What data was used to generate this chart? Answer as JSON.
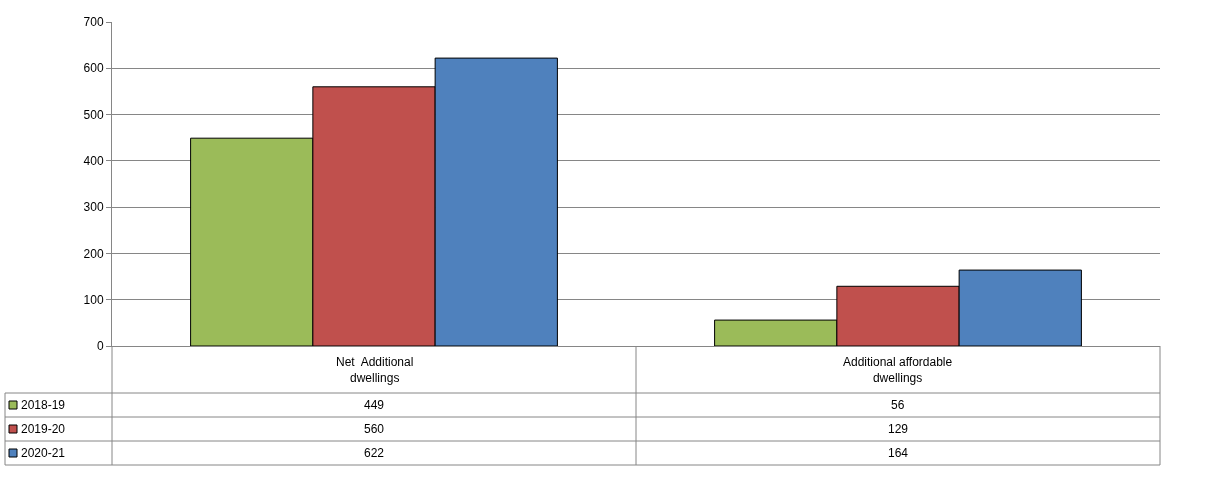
{
  "chart_data": {
    "type": "bar",
    "categories": [
      "Net  Additional\ndwellings",
      "Additional affordable\ndwellings"
    ],
    "series": [
      {
        "name": "2018-19",
        "color": "#9bbb59",
        "values": [
          449,
          56
        ]
      },
      {
        "name": "2019-20",
        "color": "#c0504d",
        "values": [
          560,
          129
        ]
      },
      {
        "name": "2020-21",
        "color": "#4f81bd",
        "values": [
          622,
          164
        ]
      }
    ],
    "ylim": [
      0,
      700
    ],
    "yticks": [
      0,
      100,
      200,
      300,
      400,
      500,
      600,
      700
    ],
    "grid": "y",
    "data_labels": true,
    "legend": "bottom left"
  }
}
